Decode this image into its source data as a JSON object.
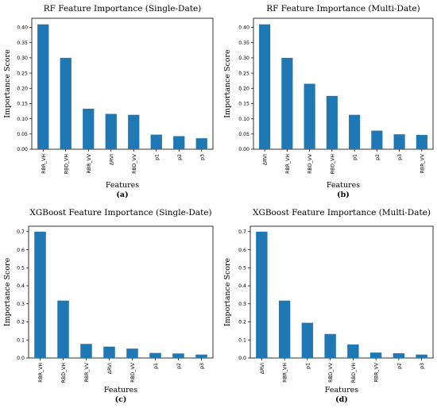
{
  "chart_data": [
    {
      "type": "bar",
      "title": "RF Feature Importance (Single-Date)",
      "xlabel": "Features",
      "ylabel": "Importance Score",
      "caption": "(a)",
      "categories": [
        "RBR_VH",
        "RBD_VH",
        "RBR_VV",
        "ΔRVI",
        "RBD_VV",
        "p1",
        "p2",
        "p3"
      ],
      "values": [
        0.41,
        0.3,
        0.133,
        0.116,
        0.113,
        0.048,
        0.043,
        0.036
      ],
      "ylim": [
        0,
        0.43
      ],
      "yticks": [
        0.0,
        0.05,
        0.1,
        0.15,
        0.2,
        0.25,
        0.3,
        0.35,
        0.4
      ],
      "ytick_labels": [
        "0.00",
        "0.05",
        "0.10",
        "0.15",
        "0.20",
        "0.25",
        "0.30",
        "0.35",
        "0.40"
      ],
      "bar_color": "#1f77b4",
      "grid": false,
      "legend": false
    },
    {
      "type": "bar",
      "title": "RF Feature Importance (Multi-Date)",
      "xlabel": "Features",
      "ylabel": "Importance Score",
      "caption": "(b)",
      "categories": [
        "ΔRVI",
        "RBR_VH",
        "RBD_VV",
        "RBD_VH",
        "p1",
        "p2",
        "p3",
        "RBR_VV"
      ],
      "values": [
        0.41,
        0.3,
        0.215,
        0.175,
        0.113,
        0.061,
        0.049,
        0.047
      ],
      "ylim": [
        0,
        0.43
      ],
      "yticks": [
        0.0,
        0.05,
        0.1,
        0.15,
        0.2,
        0.25,
        0.3,
        0.35,
        0.4
      ],
      "ytick_labels": [
        "0.00",
        "0.05",
        "0.10",
        "0.15",
        "0.20",
        "0.25",
        "0.30",
        "0.35",
        "0.40"
      ],
      "bar_color": "#1f77b4",
      "grid": false,
      "legend": false
    },
    {
      "type": "bar",
      "title": "XGBoost Feature Importance (Single-Date)",
      "xlabel": "Features",
      "ylabel": "Importance Score",
      "caption": "(c)",
      "categories": [
        "RBR_VH",
        "RBD_VH",
        "RBR_VV",
        "ΔRVI",
        "RBD_VV",
        "p1",
        "p2",
        "p3"
      ],
      "values": [
        0.7,
        0.318,
        0.078,
        0.063,
        0.052,
        0.028,
        0.025,
        0.019
      ],
      "ylim": [
        0,
        0.73
      ],
      "yticks": [
        0.0,
        0.1,
        0.2,
        0.3,
        0.4,
        0.5,
        0.6,
        0.7
      ],
      "ytick_labels": [
        "0.0",
        "0.1",
        "0.2",
        "0.3",
        "0.4",
        "0.5",
        "0.6",
        "0.7"
      ],
      "bar_color": "#1f77b4",
      "grid": false,
      "legend": false
    },
    {
      "type": "bar",
      "title": "XGBoost Feature Importance (Multi-Date)",
      "xlabel": "Features",
      "ylabel": "Importance Score",
      "caption": "(d)",
      "categories": [
        "ΔRVI",
        "RBR_VH",
        "p1",
        "RBD_VV",
        "RBD_VH",
        "RBR_VV",
        "p2",
        "p3"
      ],
      "values": [
        0.7,
        0.318,
        0.195,
        0.133,
        0.075,
        0.03,
        0.026,
        0.019
      ],
      "ylim": [
        0,
        0.73
      ],
      "yticks": [
        0.0,
        0.1,
        0.2,
        0.3,
        0.4,
        0.5,
        0.6,
        0.7
      ],
      "ytick_labels": [
        "0.0",
        "0.1",
        "0.2",
        "0.3",
        "0.4",
        "0.5",
        "0.6",
        "0.7"
      ],
      "bar_color": "#1f77b4",
      "grid": false,
      "legend": false
    }
  ]
}
